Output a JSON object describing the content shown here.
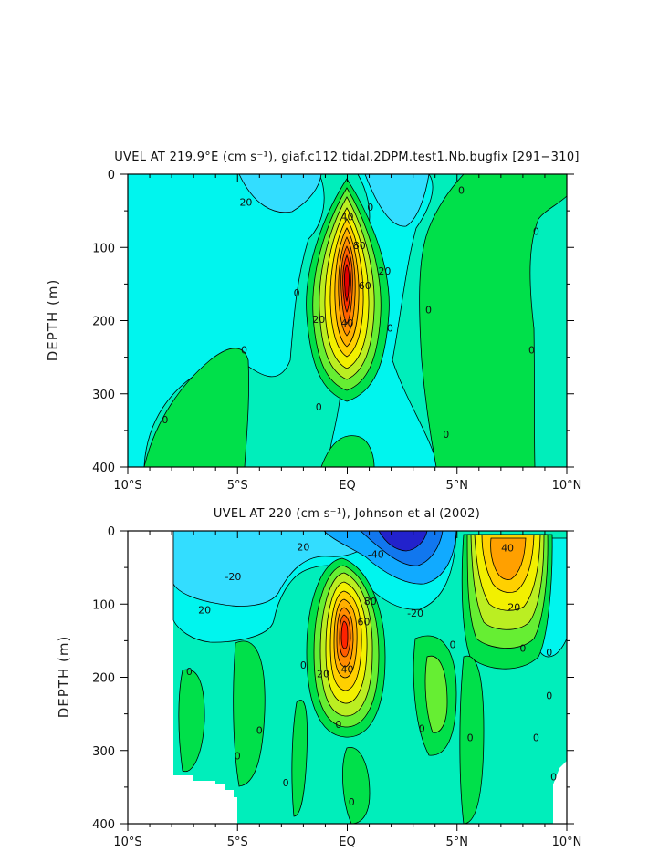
{
  "chart_data": [
    {
      "type": "contour",
      "title": "UVEL AT 219.9°E (cm s⁻¹), giaf.c112.tidal.2DPM.test1.Nb.bugfix [291−310]",
      "ylabel": "DEPTH (m)",
      "xlabel": "",
      "x_ticks": [
        "10°S",
        "5°S",
        "EQ",
        "5°N",
        "10°N"
      ],
      "x_tick_values": [
        -10,
        -5,
        0,
        5,
        10
      ],
      "y_ticks": [
        "0",
        "100",
        "200",
        "300",
        "400"
      ],
      "y_tick_values": [
        0,
        100,
        200,
        300,
        400
      ],
      "xlim": [
        -10,
        10
      ],
      "ylim": [
        0,
        400
      ],
      "contour_interval": 10,
      "contour_labels": [
        {
          "text": "-20",
          "x": -4.7,
          "y": 38
        },
        {
          "text": "0",
          "x": -8.3,
          "y": 335
        },
        {
          "text": "0",
          "x": -4.7,
          "y": 240
        },
        {
          "text": "0",
          "x": -2.3,
          "y": 162
        },
        {
          "text": "0",
          "x": -1.3,
          "y": 318
        },
        {
          "text": "0",
          "x": 1.05,
          "y": 45
        },
        {
          "text": "0",
          "x": 1.95,
          "y": 210
        },
        {
          "text": "0",
          "x": 3.7,
          "y": 185
        },
        {
          "text": "0",
          "x": 5.2,
          "y": 22
        },
        {
          "text": "0",
          "x": 8.6,
          "y": 78
        },
        {
          "text": "0",
          "x": 8.4,
          "y": 240
        },
        {
          "text": "0",
          "x": 4.5,
          "y": 355
        },
        {
          "text": "40",
          "x": 0.0,
          "y": 58
        },
        {
          "text": "80",
          "x": 0.55,
          "y": 97
        },
        {
          "text": "60",
          "x": 0.8,
          "y": 152
        },
        {
          "text": "20",
          "x": 1.7,
          "y": 132
        },
        {
          "text": "20",
          "x": -1.3,
          "y": 198
        },
        {
          "text": "40",
          "x": 0.0,
          "y": 203
        }
      ]
    },
    {
      "type": "contour",
      "title": "UVEL AT 220 (cm s⁻¹), Johnson et al (2002)",
      "ylabel": "DEPTH (m)",
      "xlabel": "",
      "x_ticks": [
        "10°S",
        "5°S",
        "EQ",
        "5°N",
        "10°N"
      ],
      "x_tick_values": [
        -10,
        -5,
        0,
        5,
        10
      ],
      "y_ticks": [
        "0",
        "100",
        "200",
        "300",
        "400"
      ],
      "y_tick_values": [
        0,
        100,
        200,
        300,
        400
      ],
      "xlim": [
        -10,
        10
      ],
      "ylim": [
        0,
        400
      ],
      "contour_interval": 10,
      "contour_labels": [
        {
          "text": "20",
          "x": -2.0,
          "y": 22
        },
        {
          "text": "-20",
          "x": -5.2,
          "y": 62
        },
        {
          "text": "20",
          "x": -6.5,
          "y": 108
        },
        {
          "text": "-40",
          "x": 1.3,
          "y": 32
        },
        {
          "text": "-20",
          "x": 3.1,
          "y": 112
        },
        {
          "text": "40",
          "x": 7.3,
          "y": 23
        },
        {
          "text": "20",
          "x": 7.6,
          "y": 104
        },
        {
          "text": "80",
          "x": 1.05,
          "y": 96
        },
        {
          "text": "60",
          "x": 0.75,
          "y": 124
        },
        {
          "text": "20",
          "x": -1.1,
          "y": 195
        },
        {
          "text": "40",
          "x": 0.0,
          "y": 189
        },
        {
          "text": "0",
          "x": -7.2,
          "y": 192
        },
        {
          "text": "0",
          "x": -5.0,
          "y": 307
        },
        {
          "text": "0",
          "x": -4.0,
          "y": 272
        },
        {
          "text": "0",
          "x": -2.8,
          "y": 344
        },
        {
          "text": "0",
          "x": -2.0,
          "y": 183
        },
        {
          "text": "0",
          "x": -0.4,
          "y": 264
        },
        {
          "text": "0",
          "x": 0.2,
          "y": 370
        },
        {
          "text": "0",
          "x": 3.4,
          "y": 270
        },
        {
          "text": "0",
          "x": 4.8,
          "y": 155
        },
        {
          "text": "0",
          "x": 5.6,
          "y": 282
        },
        {
          "text": "0",
          "x": 8.0,
          "y": 160
        },
        {
          "text": "0",
          "x": 8.6,
          "y": 282
        },
        {
          "text": "0",
          "x": 9.2,
          "y": 225
        },
        {
          "text": "0",
          "x": 9.2,
          "y": 166
        },
        {
          "text": "0",
          "x": 9.4,
          "y": 336
        }
      ]
    }
  ]
}
